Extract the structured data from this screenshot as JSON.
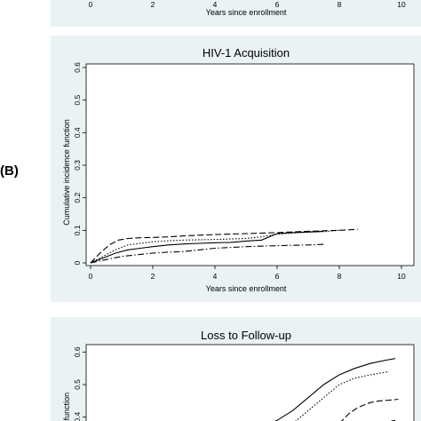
{
  "panel_label_b": "(B)",
  "chart_data": [
    {
      "id": "top",
      "type": "line",
      "title": "",
      "xlabel": "Years since enrollment",
      "ylabel": "",
      "x_ticks": [
        0,
        2,
        4,
        6,
        8,
        10
      ],
      "xlim": [
        0,
        10
      ],
      "series": []
    },
    {
      "id": "mid",
      "type": "line",
      "title": "HIV-1 Acquisition",
      "xlabel": "Years since enrollment",
      "ylabel": "Cumulative incidence function",
      "x_ticks": [
        0,
        2,
        4,
        6,
        8,
        10
      ],
      "y_ticks": [
        0,
        0.1,
        0.2,
        0.3,
        0.4,
        0.5,
        0.6
      ],
      "xlim": [
        0,
        10
      ],
      "ylim": [
        0,
        0.6
      ],
      "grid": false,
      "series": [
        {
          "style": "solid",
          "x": [
            0,
            0.4,
            0.8,
            1.2,
            1.6,
            2,
            2.5,
            3,
            3.5,
            4,
            4.5,
            5,
            5.5,
            6,
            6.5,
            7,
            7.5
          ],
          "y": [
            0,
            0.015,
            0.03,
            0.04,
            0.045,
            0.05,
            0.055,
            0.058,
            0.06,
            0.062,
            0.063,
            0.067,
            0.07,
            0.09,
            0.093,
            0.095,
            0.097
          ]
        },
        {
          "style": "longdash",
          "x": [
            0,
            0.3,
            0.6,
            0.9,
            1.2,
            1.5,
            2,
            2.5,
            3,
            3.5,
            4,
            5,
            6,
            7,
            8,
            8.6
          ],
          "y": [
            0,
            0.03,
            0.055,
            0.07,
            0.075,
            0.077,
            0.078,
            0.08,
            0.083,
            0.085,
            0.087,
            0.09,
            0.093,
            0.097,
            0.1,
            0.103
          ]
        },
        {
          "style": "dot",
          "x": [
            0,
            0.4,
            0.8,
            1.2,
            1.6,
            2,
            2.5,
            3,
            4,
            5,
            5.5,
            6,
            6.5,
            7,
            7.5,
            8
          ],
          "y": [
            0,
            0.02,
            0.04,
            0.055,
            0.06,
            0.065,
            0.068,
            0.07,
            0.072,
            0.075,
            0.08,
            0.088,
            0.092,
            0.094,
            0.096,
            0.1
          ]
        },
        {
          "style": "dashdot",
          "x": [
            0,
            0.5,
            1,
            1.5,
            2,
            2.5,
            3,
            3.5,
            4,
            5,
            6,
            7,
            7.5
          ],
          "y": [
            0,
            0.01,
            0.02,
            0.025,
            0.03,
            0.033,
            0.035,
            0.04,
            0.045,
            0.05,
            0.053,
            0.055,
            0.057
          ]
        }
      ]
    },
    {
      "id": "bot",
      "type": "line",
      "title": "Loss to Follow-up",
      "xlabel": "",
      "ylabel": "ן function",
      "y_ticks": [
        0.4,
        0.5,
        0.6
      ],
      "ylim": [
        0.35,
        0.65
      ],
      "xlim": [
        0,
        10
      ],
      "grid": false,
      "series": [
        {
          "style": "solid",
          "x": [
            4.5,
            5,
            5.5,
            6,
            6.5,
            7,
            7.5,
            8,
            8.5,
            9,
            9.5,
            9.8
          ],
          "y": [
            0.35,
            0.36,
            0.37,
            0.39,
            0.42,
            0.46,
            0.5,
            0.53,
            0.55,
            0.565,
            0.575,
            0.58
          ]
        },
        {
          "style": "dot",
          "x": [
            6,
            6.5,
            7,
            7.5,
            8,
            8.5,
            9,
            9.3,
            9.6
          ],
          "y": [
            0.35,
            0.38,
            0.42,
            0.46,
            0.5,
            0.52,
            0.53,
            0.535,
            0.54
          ]
        },
        {
          "style": "longdash",
          "x": [
            8,
            8.3,
            8.6,
            9,
            9.3,
            9.6,
            9.9
          ],
          "y": [
            0.38,
            0.41,
            0.43,
            0.445,
            0.45,
            0.452,
            0.455
          ]
        },
        {
          "style": "dashdot",
          "x": [
            7,
            7.5,
            8,
            8.5,
            9,
            9.5,
            9.8
          ],
          "y": [
            0.35,
            0.36,
            0.37,
            0.375,
            0.38,
            0.385,
            0.39
          ]
        }
      ]
    }
  ]
}
